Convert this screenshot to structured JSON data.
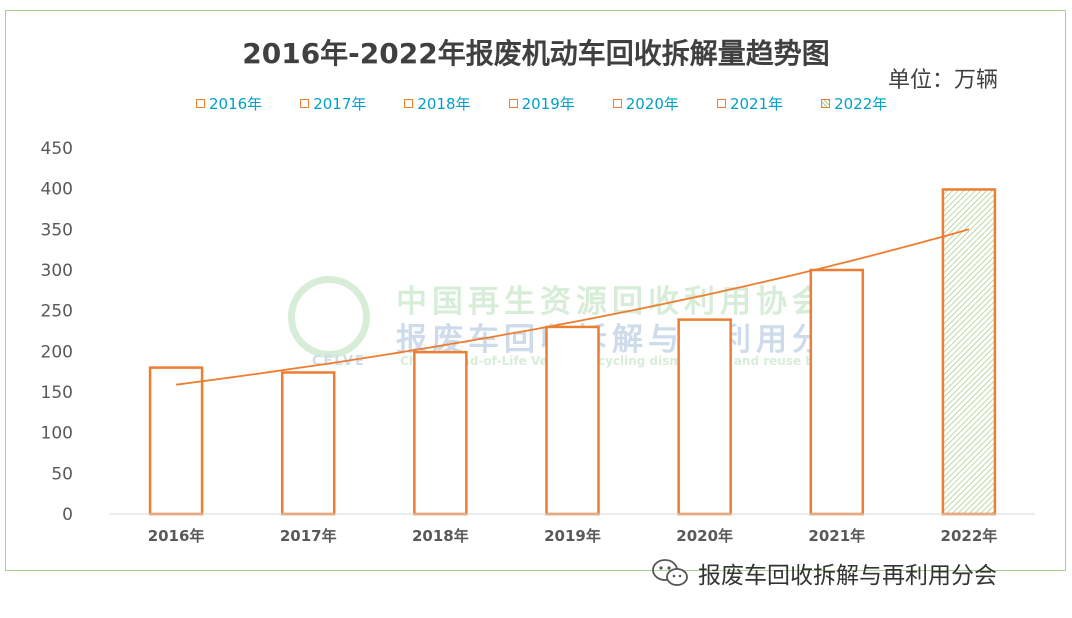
{
  "chart_data": {
    "type": "bar",
    "title": "2016年-2022年报废机动车回收拆解量趋势图",
    "unit_label": "单位：万辆",
    "categories": [
      "2016年",
      "2017年",
      "2018年",
      "2019年",
      "2020年",
      "2021年",
      "2022年"
    ],
    "values": [
      180,
      174,
      199,
      230,
      239,
      300,
      399
    ],
    "ylim": [
      0,
      450
    ],
    "yticks": [
      0,
      50,
      100,
      150,
      200,
      250,
      300,
      350,
      400,
      450
    ],
    "legend": [
      "2016年",
      "2017年",
      "2018年",
      "2019年",
      "2020年",
      "2021年",
      "2022年"
    ],
    "legend_position": "top",
    "trendline": {
      "type": "exponential",
      "start": 159,
      "end": 350
    },
    "grid": false,
    "colors": {
      "bar_stroke": "#ed7d31",
      "hatch": "#a9d18e",
      "trend": "#ed7d31",
      "legend_text": "#00a0c8"
    }
  },
  "watermark": {
    "logo_text": "CELVE",
    "line1": "中国再生资源回收利用协会",
    "line2": "报废车回收拆解与再利用分会",
    "line3": "China's End-of-Life Vehicle recycling dismantling and reuse branch"
  },
  "footer": {
    "text": "报废车回收拆解与再利用分会",
    "icon": "wechat-icon"
  }
}
